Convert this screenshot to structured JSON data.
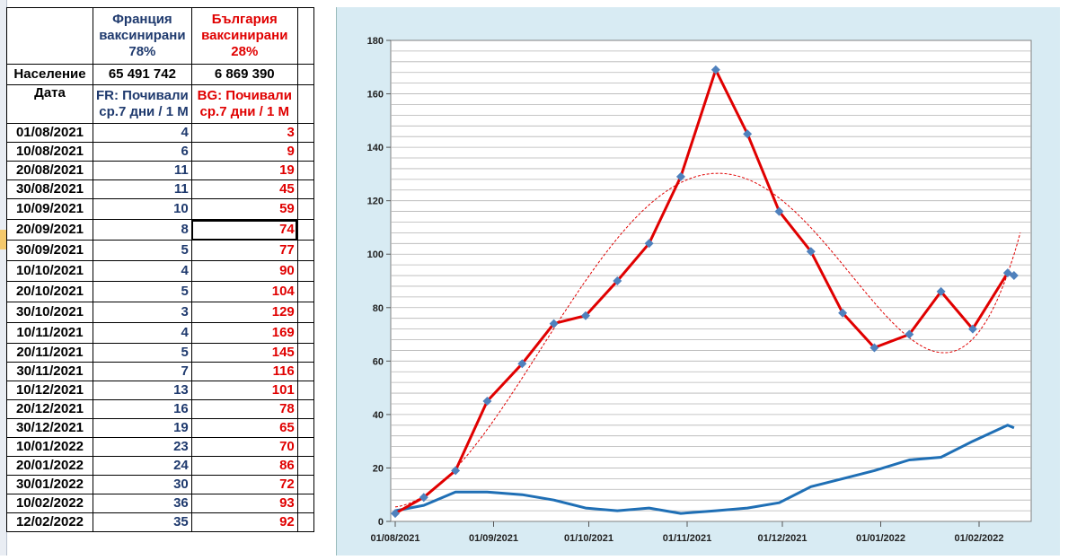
{
  "table": {
    "header": {
      "fr_title_line1": "Франция",
      "fr_title_line2": "ваксинирани",
      "fr_title_line3": "78%",
      "bg_title_line1": "България",
      "bg_title_line2": "ваксинирани",
      "bg_title_line3": "28%"
    },
    "population": {
      "label": "Население",
      "fr": "65 491 742",
      "bg": "6 869 390"
    },
    "columns": {
      "date": "Дата",
      "fr_line1": "FR: Почивали",
      "fr_line2": "ср.7 дни / 1 М",
      "bg_line1": "BG: Почивали",
      "bg_line2": "ср.7 дни / 1 М"
    },
    "rows": [
      {
        "date": "01/08/2021",
        "fr": "4",
        "bg": "3"
      },
      {
        "date": "10/08/2021",
        "fr": "6",
        "bg": "9"
      },
      {
        "date": "20/08/2021",
        "fr": "11",
        "bg": "19"
      },
      {
        "date": "30/08/2021",
        "fr": "11",
        "bg": "45"
      },
      {
        "date": "10/09/2021",
        "fr": "10",
        "bg": "59"
      },
      {
        "date": "20/09/2021",
        "fr": "8",
        "bg": "74"
      },
      {
        "date": "30/09/2021",
        "fr": "5",
        "bg": "77"
      },
      {
        "date": "10/10/2021",
        "fr": "4",
        "bg": "90"
      },
      {
        "date": "20/10/2021",
        "fr": "5",
        "bg": "104"
      },
      {
        "date": "30/10/2021",
        "fr": "3",
        "bg": "129"
      },
      {
        "date": "10/11/2021",
        "fr": "4",
        "bg": "169"
      },
      {
        "date": "20/11/2021",
        "fr": "5",
        "bg": "145"
      },
      {
        "date": "30/11/2021",
        "fr": "7",
        "bg": "116"
      },
      {
        "date": "10/12/2021",
        "fr": "13",
        "bg": "101"
      },
      {
        "date": "20/12/2021",
        "fr": "16",
        "bg": "78"
      },
      {
        "date": "30/12/2021",
        "fr": "19",
        "bg": "65"
      },
      {
        "date": "10/01/2022",
        "fr": "23",
        "bg": "70"
      },
      {
        "date": "20/01/2022",
        "fr": "24",
        "bg": "86"
      },
      {
        "date": "30/01/2022",
        "fr": "30",
        "bg": "72"
      },
      {
        "date": "10/02/2022",
        "fr": "36",
        "bg": "93"
      },
      {
        "date": "12/02/2022",
        "fr": "35",
        "bg": "92"
      }
    ],
    "selected_row": 5
  },
  "chart_data": {
    "type": "line",
    "x": [
      "01/08/2021",
      "10/08/2021",
      "20/08/2021",
      "30/08/2021",
      "10/09/2021",
      "20/09/2021",
      "30/09/2021",
      "10/10/2021",
      "20/10/2021",
      "30/10/2021",
      "10/11/2021",
      "20/11/2021",
      "30/11/2021",
      "10/12/2021",
      "20/12/2021",
      "30/12/2021",
      "10/01/2022",
      "20/01/2022",
      "30/01/2022",
      "10/02/2022",
      "12/02/2022"
    ],
    "series": [
      {
        "values": [
          4,
          6,
          11,
          11,
          10,
          8,
          5,
          4,
          5,
          3,
          4,
          5,
          7,
          13,
          16,
          19,
          23,
          24,
          30,
          36,
          35
        ],
        "color": "#1f6fb5",
        "markers": false
      },
      {
        "values": [
          3,
          9,
          19,
          45,
          59,
          74,
          77,
          90,
          104,
          129,
          169,
          145,
          116,
          101,
          78,
          65,
          70,
          86,
          72,
          93,
          92
        ],
        "color": "#e00000",
        "markers": true,
        "marker_color": "#4f81bd"
      }
    ],
    "trendline": {
      "series": 1,
      "type": "polynomial",
      "style": "dashed",
      "color": "#e00000"
    },
    "x_ticks": [
      "01/08/2021",
      "01/09/2021",
      "01/10/2021",
      "01/11/2021",
      "01/12/2021",
      "01/01/2022",
      "01/02/2022"
    ],
    "y_ticks": [
      0,
      20,
      40,
      60,
      80,
      100,
      120,
      140,
      160,
      180
    ],
    "ylim": [
      0,
      180
    ],
    "grid": "horizontal",
    "title": "",
    "xlabel": "",
    "ylabel": ""
  }
}
